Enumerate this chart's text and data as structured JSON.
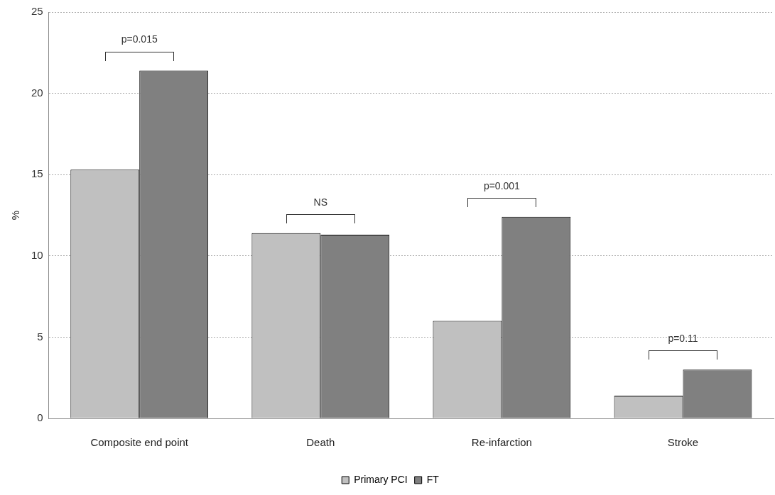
{
  "chart_data": {
    "type": "bar",
    "ylabel": "%",
    "categories": [
      "Composite end point",
      "Death",
      "Re-infarction",
      "Stroke"
    ],
    "series": [
      {
        "name": "Primary PCI",
        "color": "#c0c0c0",
        "values": [
          15.3,
          11.4,
          6.0,
          1.4
        ]
      },
      {
        "name": "FT",
        "color": "#808080",
        "values": [
          21.4,
          11.3,
          12.4,
          3.0
        ]
      }
    ],
    "ylim": [
      0,
      25
    ],
    "yticks": [
      0,
      5,
      10,
      15,
      20,
      25
    ],
    "grid": "y",
    "legend": "bottom",
    "annotations": [
      "p=0.015",
      "NS",
      "p=0.001",
      "p=0.11"
    ]
  }
}
